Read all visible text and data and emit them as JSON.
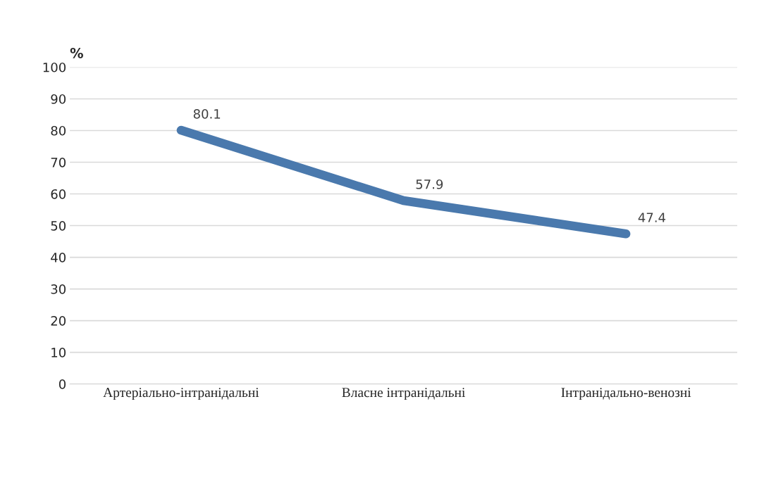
{
  "chart_data": {
    "type": "line",
    "ylabel": "%",
    "categories": [
      "Артеріально-інтранідальні",
      "Власне інтранідальні",
      "Інтранідально-венозні"
    ],
    "series": [
      {
        "color": "#4a79ad",
        "values": [
          80.1,
          57.9,
          47.4
        ]
      }
    ],
    "ylim": [
      0,
      100
    ],
    "yticks": [
      0,
      10,
      20,
      30,
      40,
      50,
      60,
      70,
      80,
      90,
      100
    ],
    "grid": "y",
    "data_labels": true,
    "legend": false,
    "marker": "none",
    "line_style": "solid"
  }
}
